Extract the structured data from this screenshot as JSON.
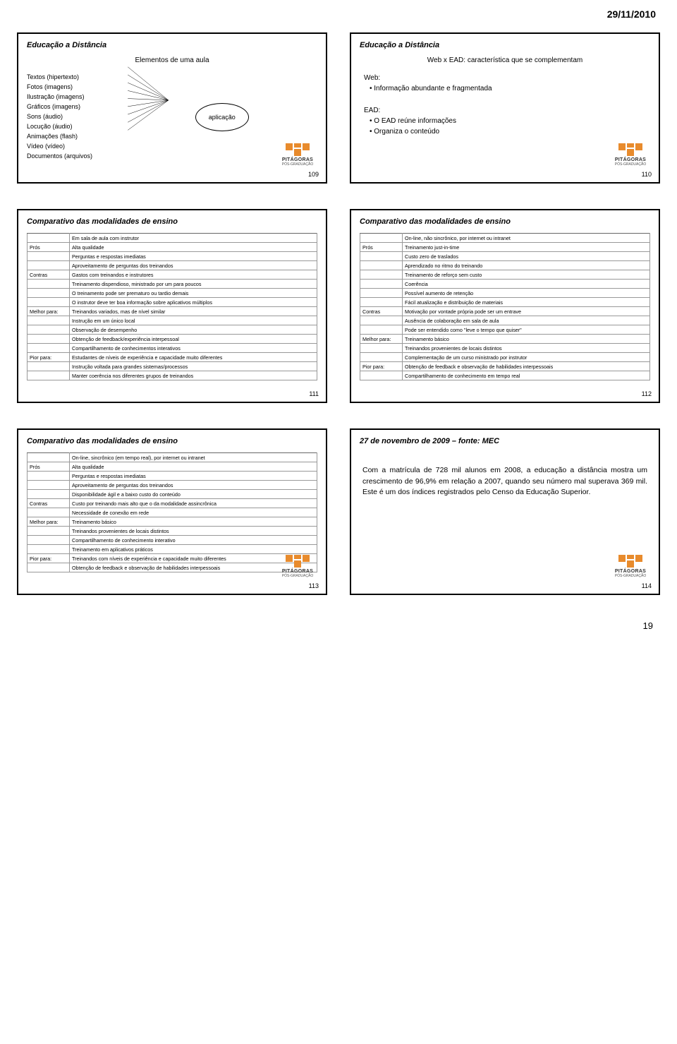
{
  "date": "29/11/2010",
  "page_number": "19",
  "logo": {
    "name": "PITÁGORAS",
    "tag": "PÓS-GRADUAÇÃO",
    "color": "#e88b2d"
  },
  "slides": {
    "s1": {
      "title": "Educação a Distância",
      "subtitle": "Elementos de uma aula",
      "items": [
        "Textos (hipertexto)",
        "Fotos (imagens)",
        "Ilustração (imagens)",
        "Gráficos (imagens)",
        "Sons (áudio)",
        "Locução  (áudio)",
        "Animações (flash)",
        "Vídeo (vídeo)",
        "Documentos (arquivos)"
      ],
      "oval": "aplicação",
      "num": "109"
    },
    "s2": {
      "title": "Educação a Distância",
      "subtitle": "Web x EAD: característica que se complementam",
      "web_h": "Web:",
      "web_b": "• Informação abundante e fragmentada",
      "ead_h": "EAD:",
      "ead_b1": "• O EAD reúne informações",
      "ead_b2": "• Organiza o conteúdo",
      "num": "110"
    },
    "s3": {
      "title": "Comparativo das modalidades de ensino",
      "header": "Em sala de aula com instrutor",
      "rows": [
        [
          "Prós",
          "Alta qualidade"
        ],
        [
          "",
          "Perguntas e respostas imediatas"
        ],
        [
          "",
          "Aproveitamento de perguntas dos treinandos"
        ],
        [
          "Contras",
          "Gastos com treinandos e instrutores"
        ],
        [
          "",
          "Treinamento dispendioso, ministrado por um para poucos"
        ],
        [
          "",
          "O treinamento pode ser prematuro ou tardio demais"
        ],
        [
          "",
          "O instrutor deve ter boa informação sobre aplicativos múltiplos"
        ],
        [
          "Melhor para:",
          "Treinandos variados, mas de nível similar"
        ],
        [
          "",
          "Instrução em um único local"
        ],
        [
          "",
          "Observação de desempenho"
        ],
        [
          "",
          "Obtenção de feedback/experiência interpessoal"
        ],
        [
          "",
          "Compartilhamento de conhecimentos interativos"
        ],
        [
          "Pior para:",
          "Estudantes de níveis de experiência e capacidade muito diferentes"
        ],
        [
          "",
          "Instrução voltada para grandes sistemas/processos"
        ],
        [
          "",
          "Manter coerência nos diferentes grupos de treinandos"
        ]
      ],
      "num": "111"
    },
    "s4": {
      "title": "Comparativo das modalidades de ensino",
      "header": "On-line, não sincrônico, por internet ou intranet",
      "rows": [
        [
          "Prós",
          "Treinamento just-in-time"
        ],
        [
          "",
          "Custo zero de traslados"
        ],
        [
          "",
          "Aprendizado no ritmo do treinando"
        ],
        [
          "",
          "Treinamento de reforço sem custo"
        ],
        [
          "",
          "Coerência"
        ],
        [
          "",
          "Possível aumento de retenção"
        ],
        [
          "",
          "Fácil atualização e distribuição de materiais"
        ],
        [
          "Contras",
          "Motivação por vontade própria pode ser um entrave"
        ],
        [
          "",
          "Ausência de colaboração em sala de aula"
        ],
        [
          "",
          "Pode ser entendido como \"leve o tempo que quiser\""
        ],
        [
          "Melhor para:",
          "Treinamento básico"
        ],
        [
          "",
          "Treinandos provenientes de locais distintos"
        ],
        [
          "",
          "Complementação de um curso ministrado por instrutor"
        ],
        [
          "Pior para:",
          "Obtenção de feedback e observação de habilidades interpessoais"
        ],
        [
          "",
          "Compartilhamento de conhecimento em tempo real"
        ]
      ],
      "num": "112"
    },
    "s5": {
      "title": "Comparativo das modalidades de ensino",
      "header": "On-line, sincrônico (em tempo real), por internet ou intranet",
      "rows": [
        [
          "Prós",
          "Alta qualidade"
        ],
        [
          "",
          "Perguntas e respostas imediatas"
        ],
        [
          "",
          "Aproveitamento de perguntas dos treinandos"
        ],
        [
          "",
          "Disponibilidade ágil e a baixo custo do conteúdo"
        ],
        [
          "Contras",
          "Custo por treinando mais alto que o da modalidade assincrônica"
        ],
        [
          "",
          "Necessidade de conexão em rede"
        ],
        [
          "Melhor para:",
          "Treinamento básico"
        ],
        [
          "",
          "Treinandos provenientes de locais distintos"
        ],
        [
          "",
          "Compartilhamento de conhecimento interativo"
        ],
        [
          "",
          "Treinamento em aplicativos práticos"
        ],
        [
          "Pior para:",
          "Treinandos com níveis de experiência e capacidade muito diferentes"
        ],
        [
          "",
          "Obtenção de feedback e observação de habilidades interpessoais"
        ]
      ],
      "num": "113"
    },
    "s6": {
      "title": "27 de novembro de 2009 – fonte: MEC",
      "body": "Com a matrícula de 728 mil alunos em 2008, a educação a distância mostra um crescimento de 96,9% em relação a 2007, quando seu número mal superava 369 mil. Este é um dos índices registrados pelo Censo da Educação Superior.",
      "num": "114"
    }
  }
}
